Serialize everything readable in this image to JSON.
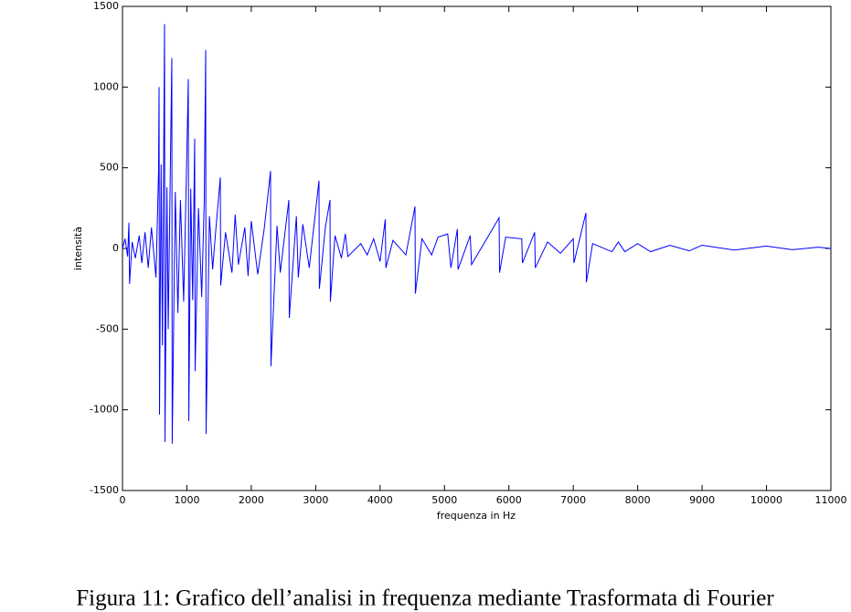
{
  "chart_data": {
    "type": "line",
    "xlabel": "frequenza in Hz",
    "ylabel": "intensità",
    "caption": "Figura 11: Grafico dell’analisi in frequenza mediante Trasformata di Fourier",
    "xlim": [
      0,
      11000
    ],
    "ylim": [
      -1500,
      1500
    ],
    "xticks": [
      0,
      1000,
      2000,
      3000,
      4000,
      5000,
      6000,
      7000,
      8000,
      9000,
      10000,
      11000
    ],
    "yticks": [
      -1500,
      -1000,
      -500,
      0,
      500,
      1000,
      1500
    ],
    "grid": false,
    "series": [
      {
        "color": "#0000ff",
        "x": [
          0,
          40,
          80,
          100,
          110,
          150,
          200,
          260,
          300,
          350,
          400,
          450,
          520,
          560,
          568,
          575,
          600,
          620,
          653,
          660,
          690,
          710,
          766,
          772,
          820,
          860,
          900,
          950,
          1000,
          1022,
          1030,
          1060,
          1090,
          1121,
          1128,
          1180,
          1230,
          1270,
          1292,
          1298,
          1350,
          1400,
          1450,
          1519,
          1525,
          1600,
          1700,
          1750,
          1800,
          1900,
          1950,
          2000,
          2100,
          2200,
          2299,
          2305,
          2400,
          2450,
          2583,
          2590,
          2700,
          2730,
          2800,
          2900,
          3051,
          3057,
          3150,
          3222,
          3228,
          3300,
          3400,
          3460,
          3500,
          3700,
          3800,
          3900,
          4000,
          4080,
          4090,
          4200,
          4400,
          4542,
          4548,
          4650,
          4800,
          4900,
          5050,
          5100,
          5200,
          5210,
          5400,
          5420,
          5848,
          5855,
          5950,
          6200,
          6210,
          6400,
          6410,
          6600,
          6800,
          7000,
          7010,
          7196,
          7203,
          7300,
          7600,
          7700,
          7800,
          8000,
          8200,
          8500,
          8800,
          9000,
          9500,
          10000,
          10400,
          10800,
          11000
        ],
        "values": [
          0,
          60,
          -50,
          160,
          -220,
          40,
          -60,
          80,
          -90,
          100,
          -120,
          130,
          -180,
          480,
          1000,
          -1030,
          520,
          -600,
          1390,
          -1200,
          380,
          -500,
          1180,
          -1210,
          350,
          -400,
          300,
          -330,
          600,
          1050,
          -1070,
          370,
          -320,
          680,
          -760,
          250,
          -300,
          300,
          1230,
          -1150,
          200,
          -130,
          120,
          440,
          -230,
          100,
          -150,
          210,
          -100,
          130,
          -170,
          170,
          -160,
          120,
          480,
          -730,
          140,
          -150,
          300,
          -430,
          200,
          -180,
          150,
          -120,
          420,
          -250,
          130,
          300,
          -330,
          80,
          -60,
          90,
          -50,
          30,
          -40,
          60,
          -80,
          180,
          -120,
          50,
          -40,
          260,
          -280,
          60,
          -40,
          70,
          90,
          -120,
          120,
          -130,
          80,
          -100,
          190,
          -150,
          70,
          60,
          -90,
          100,
          -120,
          40,
          -30,
          60,
          -90,
          220,
          -210,
          30,
          -20,
          40,
          -20,
          30,
          -20,
          20,
          -15,
          20,
          -10,
          15,
          -8,
          8,
          0
        ]
      }
    ]
  }
}
